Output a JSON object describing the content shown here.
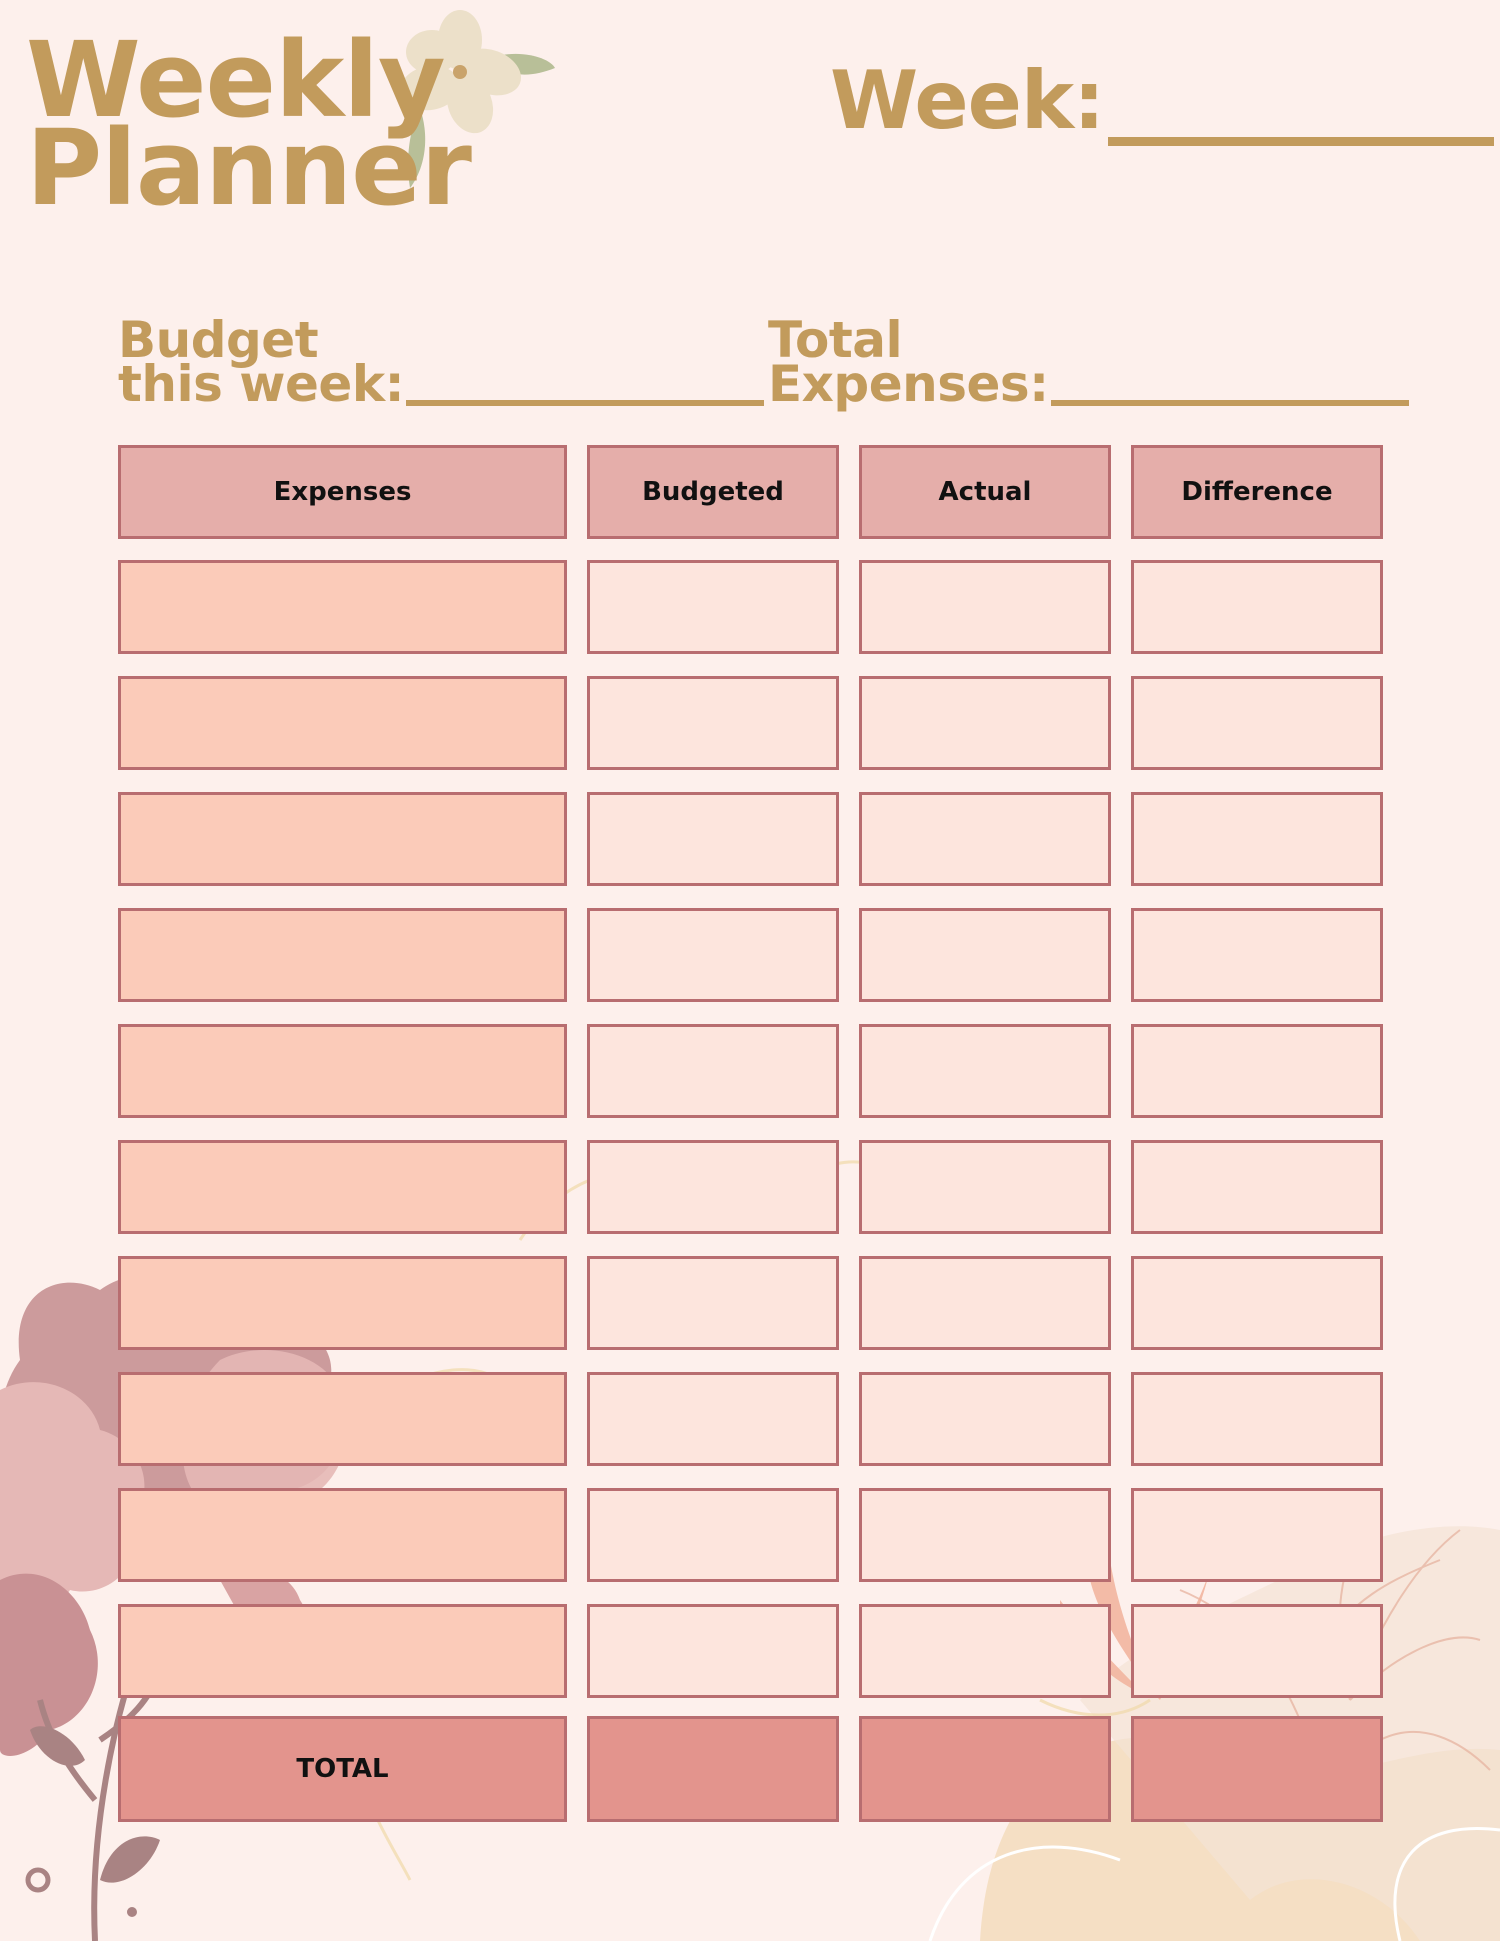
{
  "title": {
    "line1": "Weekly",
    "line2": "Planner"
  },
  "week_label": "Week:",
  "budget_field": {
    "line1": "Budget",
    "line2": "this week:"
  },
  "expenses_field": {
    "line1": "Total",
    "line2": "Expenses:"
  },
  "table": {
    "headers": [
      "Expenses",
      "Budgeted",
      "Actual",
      "Difference"
    ],
    "rows": [
      [
        "",
        "",
        "",
        ""
      ],
      [
        "",
        "",
        "",
        ""
      ],
      [
        "",
        "",
        "",
        ""
      ],
      [
        "",
        "",
        "",
        ""
      ],
      [
        "",
        "",
        "",
        ""
      ],
      [
        "",
        "",
        "",
        ""
      ],
      [
        "",
        "",
        "",
        ""
      ],
      [
        "",
        "",
        "",
        ""
      ],
      [
        "",
        "",
        "",
        ""
      ],
      [
        "",
        "",
        "",
        ""
      ]
    ],
    "total_row": [
      "TOTAL",
      "",
      "",
      ""
    ]
  },
  "colors": {
    "background": "#fdf0ec",
    "title_gold": "#c29b5c",
    "header_fill": "#e5aeaa",
    "expense_fill": "#fbcbb9",
    "value_fill": "#fde5dd",
    "total_fill": "#e3948d",
    "border": "#b86d70"
  }
}
